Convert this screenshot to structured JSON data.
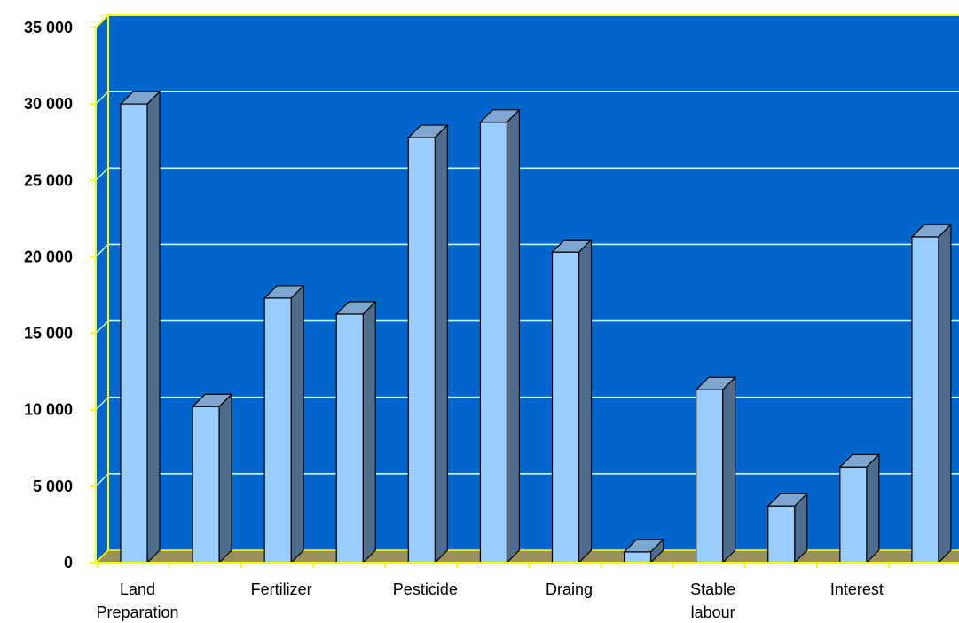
{
  "chart_data": {
    "type": "bar",
    "title": "",
    "xlabel": "",
    "ylabel": "",
    "ylim": [
      0,
      35000
    ],
    "yticks": [
      0,
      5000,
      10000,
      15000,
      20000,
      25000,
      30000,
      35000
    ],
    "ytick_labels": [
      "0",
      "5 000",
      "10 000",
      "15 000",
      "20 000",
      "25 000",
      "30 000",
      "35 000"
    ],
    "grid": true,
    "legend": "none",
    "categories": [
      "Land Preparation",
      "",
      "Fertilizer",
      "",
      "Pesticide",
      "",
      "Draing",
      "",
      "Stable labour",
      "",
      "Interest",
      ""
    ],
    "category_label_lines": [
      [
        "Land",
        "Preparation"
      ],
      [
        ""
      ],
      [
        "Fertilizer"
      ],
      [
        ""
      ],
      [
        "Pesticide"
      ],
      [
        ""
      ],
      [
        "Draing"
      ],
      [
        ""
      ],
      [
        "Stable",
        "labour"
      ],
      [
        ""
      ],
      [
        "Interest"
      ],
      [
        ""
      ]
    ],
    "values": [
      30000,
      10200,
      17300,
      16250,
      27800,
      28800,
      20300,
      700,
      11300,
      3700,
      6250,
      21300
    ],
    "colors": {
      "plot_background": "#0066CC",
      "back_wall_edge": "#FFFF00",
      "floor": "#9C8F5E",
      "gridline": "#CCFFFF",
      "bar_front": "#99CCFF",
      "bar_side": "#4F6C8C",
      "bar_top": "#7FA6CF"
    }
  }
}
